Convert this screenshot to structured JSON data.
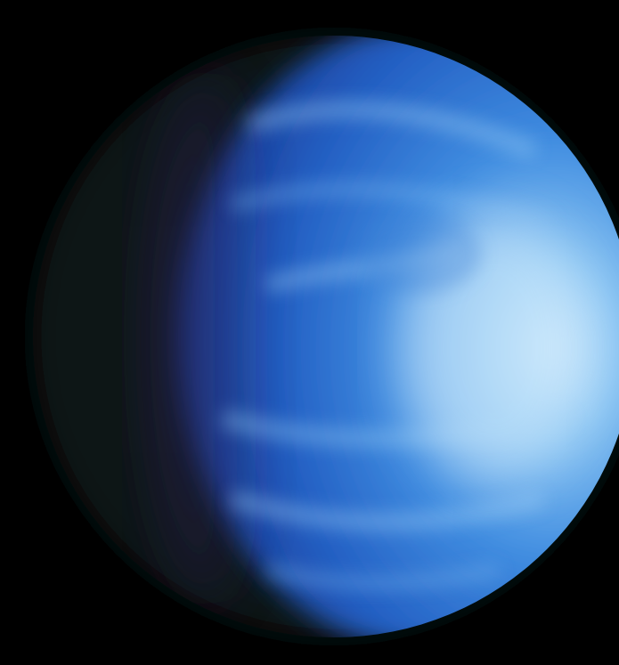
{
  "image": {
    "subject": "planet",
    "palette": {
      "space": "#000000",
      "night_limb": "#111516",
      "deep_blue": "#1e4fb4",
      "mid_blue": "#2f78d8",
      "bright_blue": "#6fb2ee",
      "highlight": "#c2e2fa",
      "terminator_purple": "#2a2050"
    }
  }
}
